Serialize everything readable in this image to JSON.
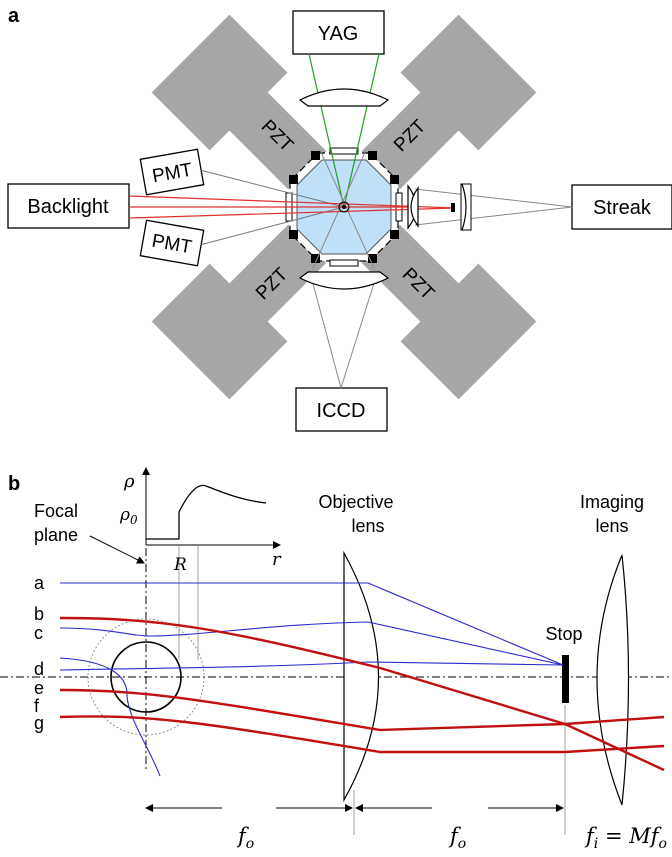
{
  "panel_a": {
    "label": "a",
    "instruments": {
      "yag": "YAG",
      "backlight": "Backlight",
      "streak": "Streak",
      "iccd": "ICCD",
      "pmt_top": "PMT",
      "pmt_bottom": "PMT"
    },
    "pzt_labels": [
      "PZT",
      "PZT",
      "PZT",
      "PZT"
    ]
  },
  "panel_b": {
    "label": "b",
    "focal_plane_line1": "Focal",
    "focal_plane_line2": "plane",
    "objective_line1": "Objective",
    "objective_line2": "lens",
    "imaging_line1": "Imaging",
    "imaging_line2": "lens",
    "stop": "Stop",
    "inset": {
      "y_axis": "ρ",
      "x_axis": "r",
      "rho0": "ρ",
      "rho0_sub": "0",
      "radius": "R"
    },
    "rays": [
      "a",
      "b",
      "c",
      "d",
      "e",
      "f",
      "g"
    ],
    "dim_fo_1": "f",
    "dim_fo_2": "f",
    "dim_sub": "o",
    "dim_fi": "f",
    "dim_fi_sub": "i",
    "dim_fi_eq": " = M",
    "dim_fi_tail": "f",
    "dim_fi_tail_sub": "o"
  },
  "colors": {
    "pzt_arm": "#a6a6a6",
    "cell": "#bfe0f7",
    "laser_green": "#22a022",
    "laser_red": "#e03030",
    "ray_blue": "#2a2ad0",
    "ray_red": "#c01010"
  }
}
